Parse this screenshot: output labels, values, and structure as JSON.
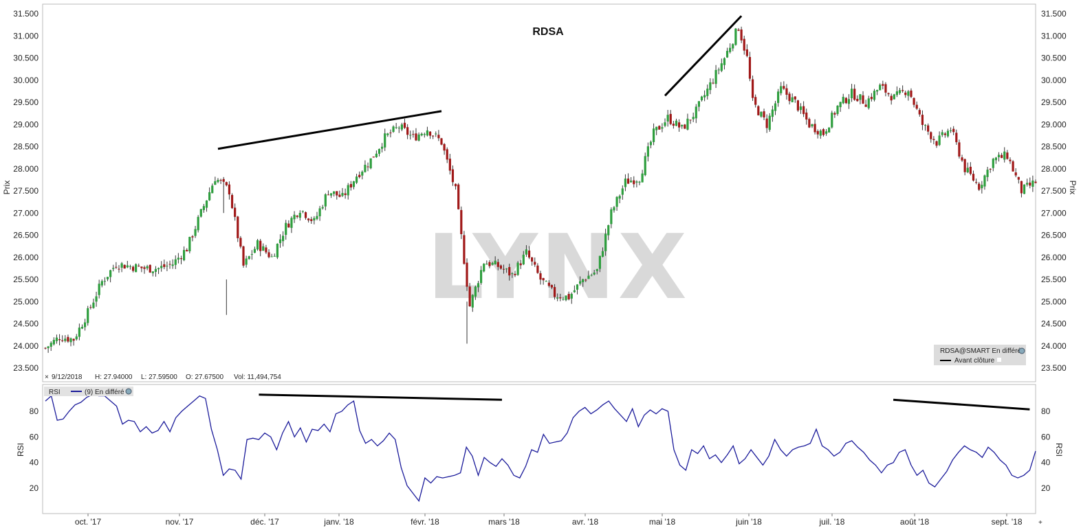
{
  "chart_data": [
    {
      "type": "candlestick",
      "title": "RDSA",
      "ylabel": "Prix",
      "ylim": [
        23.3,
        31.75
      ],
      "yticks": [
        "23.500",
        "24.000",
        "24.500",
        "25.000",
        "25.500",
        "26.000",
        "26.500",
        "27.000",
        "27.500",
        "28.000",
        "28.500",
        "29.000",
        "29.500",
        "30.000",
        "30.500",
        "31.000",
        "31.500"
      ],
      "xticks": [
        "oct. '17",
        "nov. '17",
        "déc. '17",
        "janv. '18",
        "févr. '18",
        "mars '18",
        "avr. '18",
        "mai '18",
        "juin '18",
        "juil. '18",
        "août '18",
        "sept. '18"
      ],
      "info_bar": {
        "date": "9/12/2018",
        "high": "H: 27.94000",
        "low": "L: 27.59500",
        "open": "O: 27.67500",
        "volume": "Vol: 11,494,754"
      },
      "legend": {
        "line1": "RDSA@SMART En différé",
        "line2": "Avant clôture",
        "placement": "bottom-right"
      },
      "watermark": "LYNX",
      "colors": {
        "up": "#2e9e3e",
        "down": "#a01818",
        "trendline": "#000000"
      },
      "close_path": [
        [
          0,
          23.95
        ],
        [
          5,
          24.2
        ],
        [
          10,
          24.15
        ],
        [
          15,
          24.75
        ],
        [
          20,
          25.45
        ],
        [
          25,
          25.85
        ],
        [
          30,
          25.8
        ],
        [
          35,
          25.75
        ],
        [
          40,
          25.75
        ],
        [
          45,
          25.85
        ],
        [
          50,
          26.2
        ],
        [
          55,
          27.0
        ],
        [
          60,
          27.8
        ],
        [
          65,
          27.5
        ],
        [
          70,
          25.8
        ],
        [
          75,
          26.3
        ],
        [
          80,
          26.0
        ],
        [
          85,
          26.7
        ],
        [
          90,
          27.1
        ],
        [
          95,
          26.8
        ],
        [
          100,
          27.5
        ],
        [
          105,
          27.35
        ],
        [
          110,
          27.85
        ],
        [
          115,
          28.2
        ],
        [
          120,
          28.7
        ],
        [
          125,
          28.95
        ],
        [
          130,
          28.7
        ],
        [
          135,
          28.9
        ],
        [
          140,
          28.6
        ],
        [
          145,
          27.5
        ],
        [
          150,
          24.9
        ],
        [
          155,
          25.9
        ],
        [
          160,
          25.8
        ],
        [
          165,
          25.6
        ],
        [
          170,
          26.1
        ],
        [
          175,
          25.5
        ],
        [
          180,
          25.15
        ],
        [
          185,
          25.1
        ],
        [
          190,
          25.5
        ],
        [
          195,
          25.7
        ],
        [
          200,
          27.0
        ],
        [
          205,
          27.7
        ],
        [
          210,
          27.8
        ],
        [
          215,
          28.8
        ],
        [
          220,
          29.15
        ],
        [
          225,
          28.9
        ],
        [
          230,
          29.3
        ],
        [
          235,
          29.9
        ],
        [
          240,
          30.5
        ],
        [
          245,
          31.2
        ],
        [
          248,
          30.5
        ],
        [
          250,
          29.5
        ],
        [
          255,
          29.0
        ],
        [
          260,
          29.8
        ],
        [
          265,
          29.5
        ],
        [
          270,
          29.0
        ],
        [
          275,
          28.8
        ],
        [
          280,
          29.4
        ],
        [
          285,
          29.7
        ],
        [
          290,
          29.5
        ],
        [
          295,
          29.85
        ],
        [
          300,
          29.6
        ],
        [
          305,
          29.8
        ],
        [
          310,
          29.0
        ],
        [
          315,
          28.6
        ],
        [
          320,
          28.9
        ],
        [
          325,
          28.0
        ],
        [
          330,
          27.6
        ],
        [
          335,
          28.2
        ],
        [
          340,
          28.3
        ],
        [
          345,
          27.5
        ],
        [
          350,
          27.7
        ]
      ],
      "trendlines": [
        {
          "from": [
            61,
            28.45
          ],
          "to": [
            140,
            29.3
          ]
        },
        {
          "from": [
            219,
            29.65
          ],
          "to": [
            246,
            31.45
          ]
        }
      ]
    },
    {
      "type": "line",
      "title": "",
      "ylabel": "RSI",
      "legend_label": "RSI",
      "series_label": "(9) En différé",
      "ylim": [
        3,
        98
      ],
      "yticks": [
        20,
        40,
        60,
        80
      ],
      "series": [
        {
          "values": [
            88,
            92,
            73,
            74,
            80,
            85,
            87,
            91,
            93,
            92,
            92,
            88,
            84,
            70,
            73,
            72,
            64,
            68,
            63,
            65,
            72,
            64,
            75,
            80,
            84,
            88,
            92,
            90,
            66,
            50,
            30,
            35,
            34,
            27,
            58,
            59,
            58,
            63,
            60,
            50,
            63,
            72,
            60,
            67,
            56,
            66,
            65,
            70,
            64,
            78,
            80,
            85,
            88,
            65,
            55,
            58,
            53,
            57,
            63,
            58,
            36,
            22,
            16,
            10,
            28,
            24,
            29,
            28,
            29,
            30,
            32,
            52,
            45,
            30,
            44,
            40,
            37,
            43,
            38,
            30,
            28,
            37,
            50,
            48,
            62,
            55,
            56,
            57,
            63,
            75,
            80,
            83,
            78,
            81,
            85,
            88,
            82,
            77,
            72,
            82,
            68,
            77,
            81,
            78,
            82,
            80,
            50,
            38,
            34,
            50,
            47,
            53,
            43,
            46,
            40,
            46,
            53,
            39,
            43,
            50,
            44,
            38,
            45,
            58,
            50,
            45,
            50,
            52,
            53,
            55,
            66,
            53,
            50,
            45,
            48,
            55,
            57,
            52,
            48,
            42,
            38,
            32,
            38,
            40,
            48,
            50,
            38,
            30,
            34,
            24,
            21,
            27,
            33,
            42,
            48,
            53,
            50,
            48,
            44,
            52,
            48,
            42,
            38,
            30,
            28,
            30,
            34,
            49
          ]
        }
      ],
      "trendlines": [
        {
          "from": [
            36,
            93
          ],
          "to": [
            77,
            89
          ]
        },
        {
          "from": [
            143,
            89
          ],
          "to": [
            166,
            81.5
          ]
        }
      ]
    }
  ]
}
